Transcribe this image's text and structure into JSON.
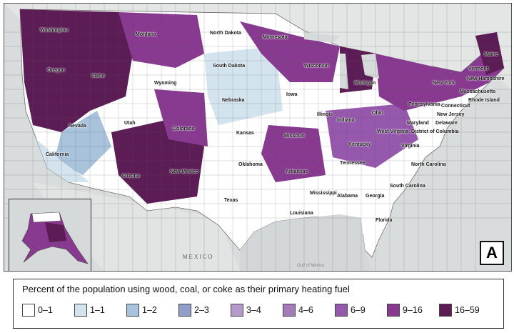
{
  "panel_letter": "A",
  "legend": {
    "title": "Percent of the population using wood, coal, or coke as their primary heating fuel",
    "items": [
      {
        "label": "0–1",
        "color": "#ffffff"
      },
      {
        "label": "1–1",
        "color": "#d3e4ef"
      },
      {
        "label": "1–2",
        "color": "#a9c3dd"
      },
      {
        "label": "2–3",
        "color": "#8f9fca"
      },
      {
        "label": "3–4",
        "color": "#b59bcb"
      },
      {
        "label": "4–6",
        "color": "#a47bb8"
      },
      {
        "label": "6–9",
        "color": "#9658ac"
      },
      {
        "label": "9–16",
        "color": "#873a8f"
      },
      {
        "label": "16–59",
        "color": "#5c1c55"
      }
    ]
  },
  "map": {
    "country_label": "MEXICO",
    "water_label": "Gulf of Mexico",
    "state_labels": [
      {
        "name": "Washington"
      },
      {
        "name": "Montana"
      },
      {
        "name": "North Dakota"
      },
      {
        "name": "Minnesota"
      },
      {
        "name": "Oregon"
      },
      {
        "name": "Idaho"
      },
      {
        "name": "South Dakota"
      },
      {
        "name": "Wisconsin"
      },
      {
        "name": "Michigan"
      },
      {
        "name": "Wyoming"
      },
      {
        "name": "Nebraska"
      },
      {
        "name": "Iowa"
      },
      {
        "name": "Nevada"
      },
      {
        "name": "Utah"
      },
      {
        "name": "Colorado"
      },
      {
        "name": "Kansas"
      },
      {
        "name": "Missouri"
      },
      {
        "name": "Illinois"
      },
      {
        "name": "Indiana"
      },
      {
        "name": "Ohio"
      },
      {
        "name": "Pennsylvania"
      },
      {
        "name": "New York"
      },
      {
        "name": "Vermont"
      },
      {
        "name": "New Hampshire"
      },
      {
        "name": "Maine"
      },
      {
        "name": "Massachusetts"
      },
      {
        "name": "Rhode Island"
      },
      {
        "name": "Connecticut"
      },
      {
        "name": "New Jersey"
      },
      {
        "name": "Delaware"
      },
      {
        "name": "Maryland"
      },
      {
        "name": "District of Columbia"
      },
      {
        "name": "West Virginia"
      },
      {
        "name": "Virginia"
      },
      {
        "name": "Kentucky"
      },
      {
        "name": "Tennessee"
      },
      {
        "name": "North Carolina"
      },
      {
        "name": "South Carolina"
      },
      {
        "name": "California"
      },
      {
        "name": "Arizona"
      },
      {
        "name": "New Mexico"
      },
      {
        "name": "Oklahoma"
      },
      {
        "name": "Arkansas"
      },
      {
        "name": "Texas"
      },
      {
        "name": "Louisiana"
      },
      {
        "name": "Mississippi"
      },
      {
        "name": "Alabama"
      },
      {
        "name": "Georgia"
      },
      {
        "name": "Florida"
      }
    ]
  }
}
